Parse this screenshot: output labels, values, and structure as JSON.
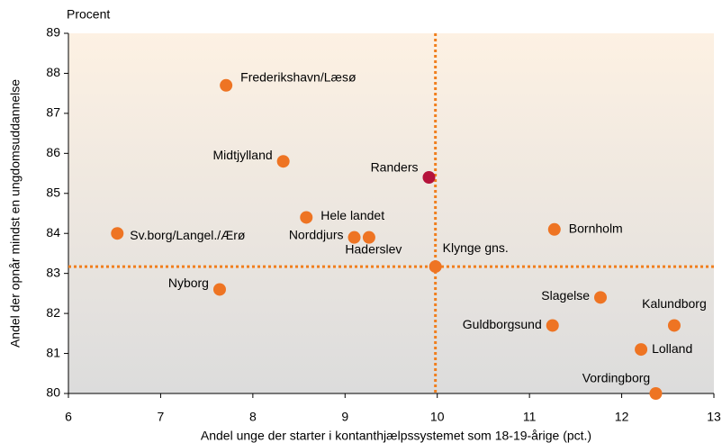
{
  "chart_data": {
    "type": "scatter",
    "y_unit_label": "Procent",
    "xlabel": "Andel unge der starter i kontanthjælpssystemet som 18-19-årige (pct.)",
    "ylabel": "Andel der opnår mindst en ungdomsuddannelse",
    "xlim": [
      6,
      13
    ],
    "xticks": [
      6,
      7,
      8,
      9,
      10,
      11,
      12,
      13
    ],
    "ylim": [
      80,
      89
    ],
    "yticks": [
      80,
      81,
      82,
      83,
      84,
      85,
      86,
      87,
      88,
      89
    ],
    "reference_lines": {
      "x": 9.98,
      "y": 83.17,
      "color": "#f07f1e"
    },
    "points": [
      {
        "label": "Frederikshavn/Læsø",
        "x": 7.71,
        "y": 87.7,
        "color": "#ee7423"
      },
      {
        "label": "Midtjylland",
        "x": 8.33,
        "y": 85.8,
        "color": "#ee7423"
      },
      {
        "label": "Randers",
        "x": 9.91,
        "y": 85.4,
        "color": "#b5123a"
      },
      {
        "label": "Hele landet",
        "x": 8.58,
        "y": 84.4,
        "color": "#ee7423"
      },
      {
        "label": "Sv.borg/Langel./Ærø",
        "x": 6.53,
        "y": 84.0,
        "color": "#ee7423"
      },
      {
        "label": "Norddjurs",
        "x": 9.1,
        "y": 83.9,
        "color": "#ee7423"
      },
      {
        "label": "Haderslev",
        "x": 9.26,
        "y": 83.9,
        "color": "#ee7423"
      },
      {
        "label": "Klynge gns.",
        "x": 9.98,
        "y": 83.17,
        "color": "#ee7423"
      },
      {
        "label": "Bornholm",
        "x": 11.27,
        "y": 84.1,
        "color": "#ee7423"
      },
      {
        "label": "Nyborg",
        "x": 7.64,
        "y": 82.6,
        "color": "#ee7423"
      },
      {
        "label": "Slagelse",
        "x": 11.77,
        "y": 82.4,
        "color": "#ee7423"
      },
      {
        "label": "Guldborgsund",
        "x": 11.25,
        "y": 81.7,
        "color": "#ee7423"
      },
      {
        "label": "Kalundborg",
        "x": 12.57,
        "y": 81.7,
        "color": "#ee7423"
      },
      {
        "label": "Lolland",
        "x": 12.21,
        "y": 81.1,
        "color": "#ee7423"
      },
      {
        "label": "Vordingborg",
        "x": 12.37,
        "y": 80.0,
        "color": "#ee7423"
      }
    ]
  }
}
